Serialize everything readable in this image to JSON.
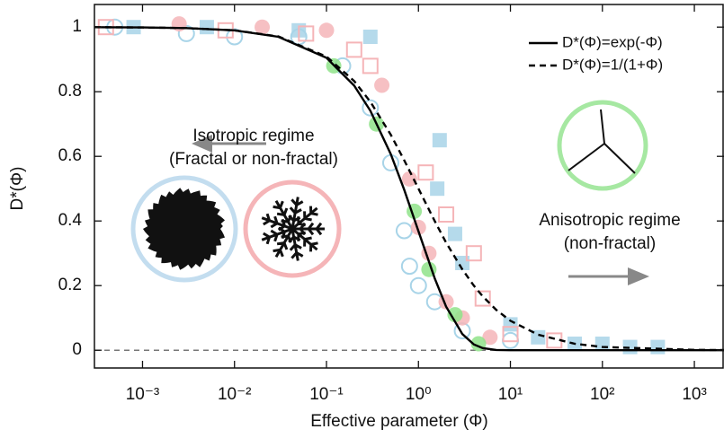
{
  "chart_data": {
    "type": "scatter",
    "xlabel": "Effective parameter (Φ)",
    "ylabel": "D*(Φ)",
    "xscale": "log",
    "xlim": [
      0.0003,
      2100
    ],
    "ylim": [
      -0.055,
      1.07
    ],
    "xticks": [
      {
        "value": 0.001,
        "label": "10⁻³"
      },
      {
        "value": 0.01,
        "label": "10⁻²"
      },
      {
        "value": 0.1,
        "label": "10⁻¹"
      },
      {
        "value": 1,
        "label": "10⁰"
      },
      {
        "value": 10,
        "label": "10¹"
      },
      {
        "value": 100,
        "label": "10²"
      },
      {
        "value": 1000,
        "label": "10³"
      }
    ],
    "yticks": [
      0,
      0.2,
      0.4,
      0.6,
      0.8,
      1
    ],
    "hline": 0,
    "legend": "top-right",
    "series": [
      {
        "name": "D*(Φ)=exp(-Φ)",
        "kind": "line",
        "dash": false,
        "color": "#000000",
        "x": [
          0.0003,
          0.001,
          0.003,
          0.01,
          0.03,
          0.1,
          0.2,
          0.3,
          0.5,
          0.7,
          1,
          1.5,
          2,
          3,
          4,
          5,
          7,
          10,
          20,
          100,
          1000,
          2100
        ],
        "values": [
          0.9997,
          0.999,
          0.997,
          0.99,
          0.97,
          0.905,
          0.819,
          0.741,
          0.607,
          0.497,
          0.368,
          0.223,
          0.135,
          0.05,
          0.018,
          0.0067,
          0.0009,
          0,
          0,
          0,
          0,
          0
        ]
      },
      {
        "name": "D*(Φ)=1/(1+Φ)",
        "kind": "line",
        "dash": true,
        "color": "#000000",
        "x": [
          0.0003,
          0.001,
          0.003,
          0.01,
          0.03,
          0.1,
          0.2,
          0.3,
          0.5,
          0.7,
          1,
          1.5,
          2,
          3,
          4,
          5,
          7,
          10,
          20,
          50,
          100,
          1000,
          2100
        ],
        "values": [
          0.9997,
          0.999,
          0.997,
          0.99,
          0.971,
          0.909,
          0.833,
          0.769,
          0.667,
          0.588,
          0.5,
          0.4,
          0.333,
          0.25,
          0.2,
          0.167,
          0.125,
          0.091,
          0.048,
          0.02,
          0.01,
          0.001,
          0.0005
        ]
      },
      {
        "kind": "point",
        "marker": "square",
        "filled": true,
        "color": "#a8d4e8",
        "x": [
          0.0008,
          0.005,
          0.05,
          0.3,
          1.7,
          1.6,
          2.5,
          3,
          10,
          20,
          50,
          100,
          200,
          400
        ],
        "values": [
          1.0,
          1.0,
          0.99,
          0.97,
          0.65,
          0.5,
          0.36,
          0.27,
          0.08,
          0.04,
          0.02,
          0.02,
          0.01,
          0.01
        ]
      },
      {
        "kind": "point",
        "marker": "circle",
        "filled": false,
        "color": "#a8d4e8",
        "x": [
          0.0005,
          0.003,
          0.01,
          0.05,
          0.15,
          0.3,
          0.5,
          0.7,
          0.8,
          1.0,
          1.5,
          3,
          10
        ],
        "values": [
          1.0,
          0.98,
          0.97,
          0.97,
          0.88,
          0.75,
          0.58,
          0.37,
          0.26,
          0.2,
          0.15,
          0.06,
          0.03
        ]
      },
      {
        "kind": "point",
        "marker": "circle",
        "filled": true,
        "color": "#f5b5b8",
        "x": [
          0.0025,
          0.02,
          0.1,
          0.4,
          0.8,
          1.0,
          1.3,
          2,
          3,
          6
        ],
        "values": [
          1.01,
          1.0,
          0.99,
          0.82,
          0.53,
          0.38,
          0.3,
          0.15,
          0.1,
          0.04
        ]
      },
      {
        "kind": "point",
        "marker": "square",
        "filled": false,
        "color": "#f5b5b8",
        "x": [
          0.0004,
          0.008,
          0.06,
          0.2,
          0.3,
          1.2,
          2,
          4,
          5,
          10,
          30
        ],
        "values": [
          1.0,
          0.99,
          0.98,
          0.93,
          0.88,
          0.55,
          0.42,
          0.3,
          0.16,
          0.05,
          0.03
        ]
      },
      {
        "kind": "point",
        "marker": "circle",
        "filled": true,
        "color": "#8fe38a",
        "x": [
          0.12,
          0.35,
          0.9,
          1.3,
          2.5,
          4.5
        ],
        "values": [
          0.88,
          0.7,
          0.43,
          0.25,
          0.11,
          0.02
        ]
      }
    ],
    "annotations": [
      "Isotropic regime",
      "(Fractal or non-fractal)",
      "Anisotropic regime",
      "(non-fractal)"
    ]
  }
}
